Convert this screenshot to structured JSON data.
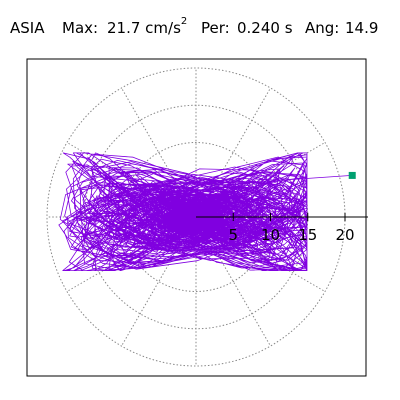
{
  "header": {
    "station": "ASIA",
    "max_label": "Max:",
    "max_value": "21.7 cm/s",
    "max_exponent": "2",
    "per_label": "Per:",
    "per_value": "0.240 s",
    "ang_label": "Ang:",
    "ang_value": "14.9"
  },
  "chart_data": {
    "type": "polar-orbit",
    "title": "ASIA",
    "max_value": 21.7,
    "max_unit": "cm/s²",
    "period_s": 0.24,
    "angle_deg": 14.9,
    "radial_ticks": [
      5,
      10,
      15,
      20
    ],
    "radial_tick_labels": [
      "5",
      "10",
      "15",
      "20"
    ],
    "rings": [
      5,
      10,
      15,
      20
    ],
    "spokes_deg_step": 30,
    "grid": true,
    "orbit_color": "#8000e0",
    "marker_color": "#00a070",
    "peak_point": {
      "r": 21.7,
      "angle_deg": 14.9
    },
    "horizontal_excursion": [
      -19.3,
      14.9
    ],
    "vertical_excursion": [
      -7.2,
      8.6
    ]
  }
}
